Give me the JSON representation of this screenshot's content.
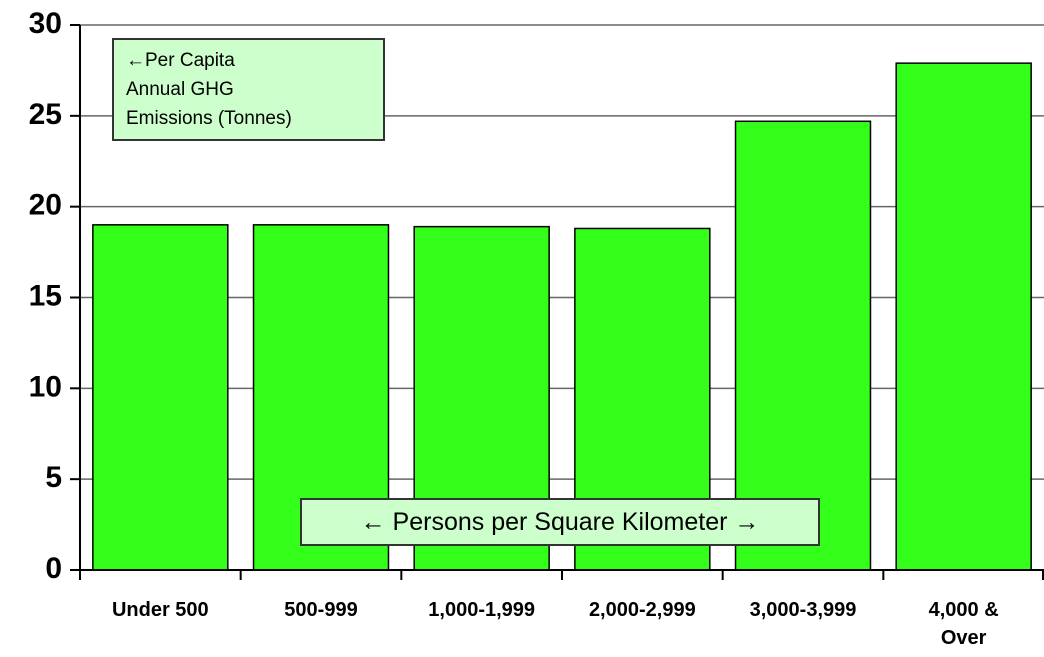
{
  "chart_data": {
    "type": "bar",
    "annotations": [
      "←Per Capita\n   Annual GHG\n   Emissions (Tonnes)",
      "← Persons per Square Kilometer →"
    ],
    "categories": [
      "Under 500",
      "500-999",
      "1,000-1,999",
      "2,000-2,999",
      "3,000-3,999",
      "4,000 &\nOver"
    ],
    "values": [
      19.0,
      19.0,
      18.9,
      18.8,
      24.7,
      27.9
    ],
    "color": "#33ff1a",
    "ylim": [
      0,
      30
    ],
    "yticks": [
      0,
      5,
      10,
      15,
      20,
      25,
      30
    ],
    "grid": true
  }
}
